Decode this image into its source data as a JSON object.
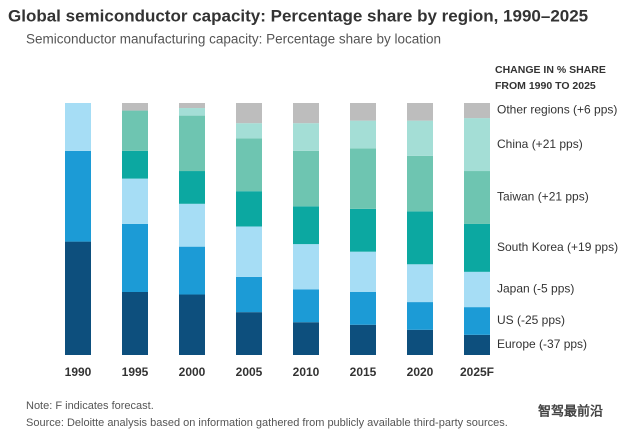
{
  "chart_data": {
    "type": "stacked_bar",
    "title": "Global semiconductor capacity: Percentage share by region, 1990–2025",
    "subtitle": "Semiconductor manufacturing capacity: Percentage share by location",
    "legend_title": [
      "CHANGE IN % SHARE",
      "FROM 1990 TO 2025"
    ],
    "categories": [
      "1990",
      "1995",
      "2000",
      "2005",
      "2010",
      "2015",
      "2020",
      "2025F"
    ],
    "series": [
      {
        "name": "Europe (-37 pps)",
        "color": "#0d4f7d",
        "values": [
          45,
          25,
          24,
          17,
          13,
          12,
          10,
          8
        ]
      },
      {
        "name": "US (-25 pps)",
        "color": "#1c9bd6",
        "values": [
          36,
          27,
          19,
          14,
          13,
          13,
          11,
          11
        ]
      },
      {
        "name": "Japan (-5 pps)",
        "color": "#a6ddf5",
        "values": [
          19,
          18,
          17,
          20,
          18,
          16,
          15,
          14
        ]
      },
      {
        "name": "South Korea (+19 pps)",
        "color": "#0ca8a1",
        "values": [
          0,
          11,
          13,
          14,
          15,
          17,
          21,
          19
        ]
      },
      {
        "name": "Taiwan (+21 pps)",
        "color": "#6ec5b1",
        "values": [
          0,
          16,
          22,
          21,
          22,
          24,
          22,
          21
        ]
      },
      {
        "name": "China (+21 pps)",
        "color": "#a4ded6",
        "values": [
          0,
          0,
          3,
          6,
          11,
          11,
          14,
          21
        ]
      },
      {
        "name": "Other regions (+6 pps)",
        "color": "#bdbdbd",
        "values": [
          0,
          3,
          2,
          8,
          8,
          7,
          7,
          6
        ]
      }
    ],
    "ylim": [
      0,
      100
    ],
    "notes": [
      "Note: F indicates forecast.",
      "Source: Deloitte analysis based on information gathered from publicly available third-party sources."
    ],
    "watermark": "智驾最前沿"
  }
}
